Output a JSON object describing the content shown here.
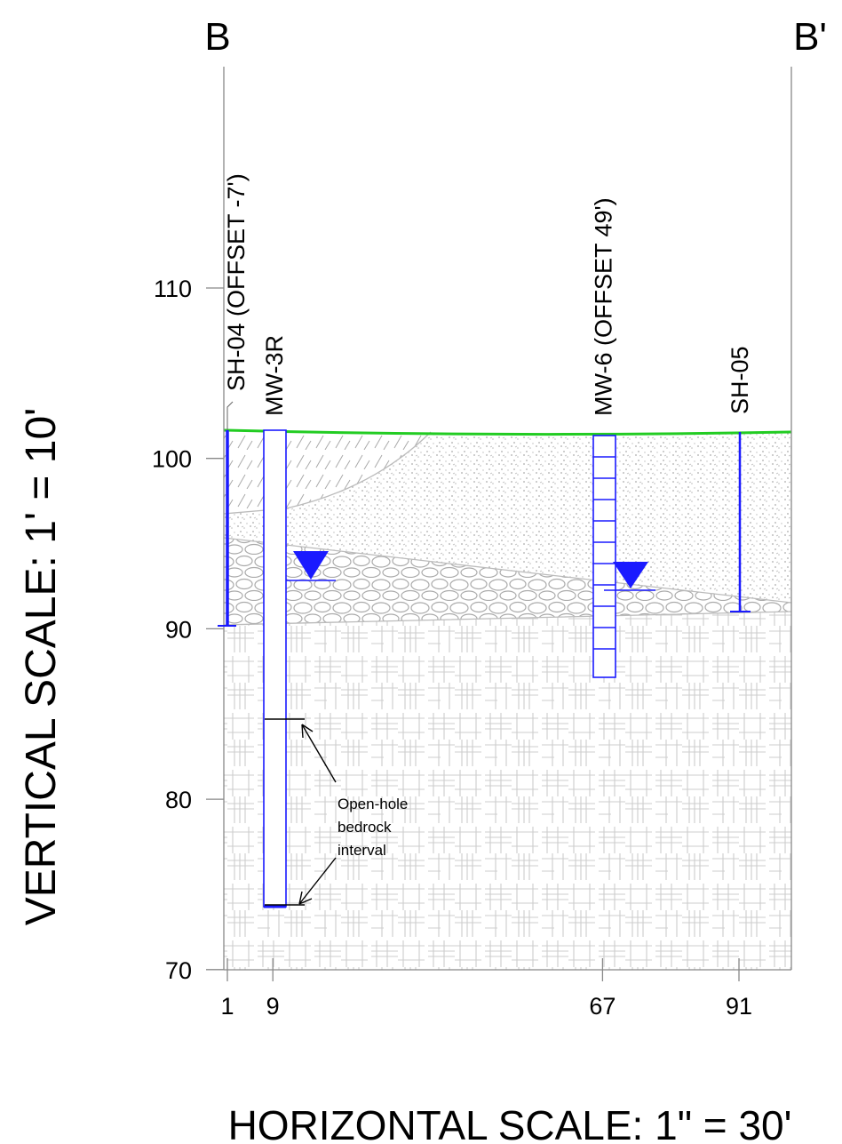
{
  "section": {
    "start": "B",
    "end": "B'"
  },
  "elevations": [
    110,
    100,
    90,
    80,
    70
  ],
  "stations": [
    1,
    9,
    67,
    91
  ],
  "wells": [
    "SH-04 (OFFSET -7')",
    "MW-3R",
    "MW-6 (OFFSET 49')",
    "SH-05"
  ],
  "annotation": [
    "Open-hole",
    "bedrock",
    "interval"
  ],
  "vertical_scale": "VERTICAL SCALE: 1' = 10'",
  "horizontal_scale": "HORIZONTAL SCALE: 1\" = 30'"
}
